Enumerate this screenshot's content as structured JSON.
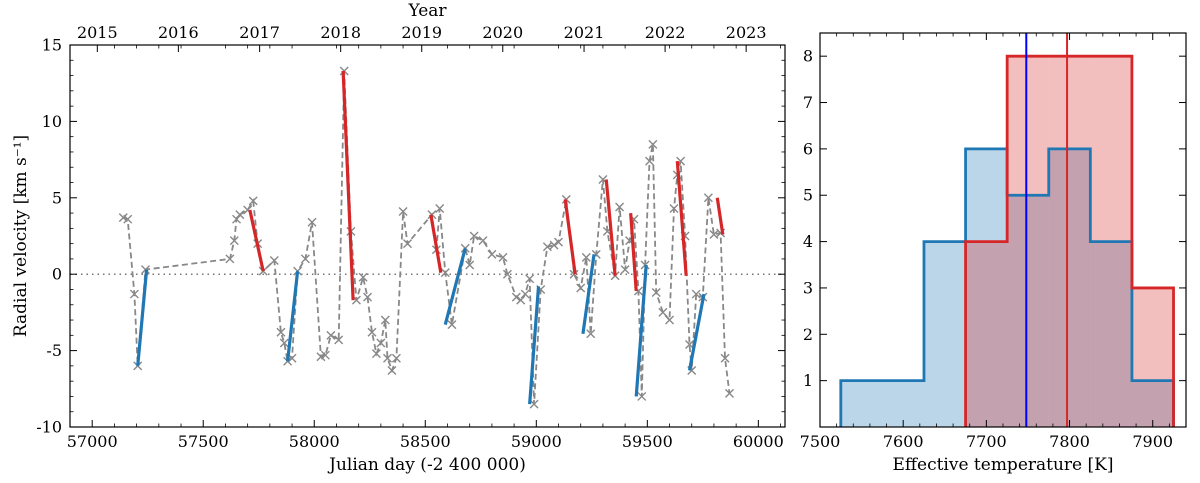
{
  "chart_data": [
    {
      "type": "line",
      "xlabel": "Julian day (-2 400 000)",
      "ylabel": "Radial velocity [km s⁻¹]",
      "top_xlabel": "Year",
      "xlim": [
        56900,
        60120
      ],
      "ylim": [
        -10,
        15
      ],
      "xticks": [
        57000,
        57500,
        58000,
        58500,
        59000,
        59500,
        60000
      ],
      "yticks": [
        -10,
        -5,
        0,
        5,
        10,
        15
      ],
      "top_ticks": [
        {
          "label": "2015",
          "x": 57023
        },
        {
          "label": "2016",
          "x": 57388
        },
        {
          "label": "2017",
          "x": 57754
        },
        {
          "label": "2018",
          "x": 58119
        },
        {
          "label": "2019",
          "x": 58484
        },
        {
          "label": "2020",
          "x": 58849
        },
        {
          "label": "2021",
          "x": 59215
        },
        {
          "label": "2022",
          "x": 59580
        },
        {
          "label": "2023",
          "x": 59945
        }
      ],
      "zero_line": 0,
      "colors": {
        "observed": "#888888",
        "rising": "#1f77b4",
        "falling": "#d62728"
      },
      "series": [
        {
          "kind": "observed",
          "x": [
            57140,
            57160,
            57190,
            57205,
            57240,
            57620,
            57640,
            57650,
            57665,
            57700,
            57725,
            57745,
            57770,
            57820,
            57850,
            57865,
            57880,
            57900,
            57925,
            57960,
            57990,
            58030,
            58050,
            58075,
            58110,
            58135,
            58165,
            58190,
            58220,
            58240,
            58260,
            58280,
            58300,
            58320,
            58330,
            58350,
            58370,
            58400,
            58420,
            58530,
            58550,
            58565,
            58590,
            58620,
            58680,
            58700,
            58720,
            58760,
            58800,
            58850,
            58870,
            58910,
            58930,
            58950,
            58970,
            58990,
            59020,
            59050,
            59080,
            59100,
            59135,
            59170,
            59200,
            59225,
            59245,
            59270,
            59300,
            59320,
            59355,
            59375,
            59400,
            59420,
            59440,
            59460,
            59475,
            59490,
            59510,
            59525,
            59540,
            59570,
            59600,
            59620,
            59635,
            59650,
            59670,
            59690,
            59700,
            59720,
            59750,
            59775,
            59800,
            59830,
            59850,
            59870
          ],
          "y": [
            3.7,
            3.6,
            -1.3,
            -6.0,
            0.3,
            1.0,
            2.2,
            3.6,
            3.9,
            4.2,
            4.8,
            2.0,
            0.2,
            0.9,
            -3.8,
            -4.5,
            -5.7,
            -5.5,
            0.2,
            1.0,
            3.4,
            -5.4,
            -5.3,
            -4.0,
            -4.3,
            13.3,
            2.8,
            -1.7,
            -0.2,
            -1.5,
            -3.8,
            -5.2,
            -4.5,
            -3.0,
            -5.5,
            -6.3,
            -5.5,
            4.1,
            2.0,
            3.9,
            1.6,
            4.3,
            0.1,
            -3.3,
            1.7,
            0.6,
            2.5,
            2.2,
            1.3,
            1.1,
            0.0,
            -1.5,
            -1.7,
            -1.3,
            -0.3,
            -8.5,
            -1.0,
            1.8,
            1.9,
            2.1,
            4.9,
            0.0,
            -0.9,
            1.1,
            -3.9,
            1.3,
            6.2,
            2.8,
            -0.1,
            4.4,
            0.3,
            2.2,
            3.6,
            -1.1,
            -8.0,
            0.6,
            7.4,
            8.5,
            -1.2,
            -2.5,
            -3.0,
            4.3,
            6.5,
            7.4,
            2.5,
            -4.6,
            -6.3,
            -1.3,
            -1.5,
            5.0,
            2.6,
            2.7,
            -5.5,
            -7.8
          ]
        },
        {
          "kind": "rising",
          "x": [
            57205,
            57245
          ],
          "y": [
            -6.0,
            0.3
          ]
        },
        {
          "kind": "rising",
          "x": [
            57880,
            57925
          ],
          "y": [
            -5.7,
            0.2
          ]
        },
        {
          "kind": "rising",
          "x": [
            58590,
            58680
          ],
          "y": [
            -3.3,
            1.7
          ]
        },
        {
          "kind": "rising",
          "x": [
            58970,
            59010
          ],
          "y": [
            -8.5,
            -0.8
          ]
        },
        {
          "kind": "rising",
          "x": [
            59210,
            59260
          ],
          "y": [
            -3.9,
            1.3
          ]
        },
        {
          "kind": "rising",
          "x": [
            59450,
            59495
          ],
          "y": [
            -8.0,
            0.6
          ]
        },
        {
          "kind": "rising",
          "x": [
            59690,
            59755
          ],
          "y": [
            -6.3,
            -1.3
          ]
        },
        {
          "kind": "falling",
          "x": [
            57710,
            57770
          ],
          "y": [
            4.2,
            0.2
          ]
        },
        {
          "kind": "falling",
          "x": [
            58130,
            58175
          ],
          "y": [
            13.3,
            -1.7
          ]
        },
        {
          "kind": "falling",
          "x": [
            58525,
            58570
          ],
          "y": [
            3.9,
            0.1
          ]
        },
        {
          "kind": "falling",
          "x": [
            59130,
            59175
          ],
          "y": [
            4.9,
            0.0
          ]
        },
        {
          "kind": "falling",
          "x": [
            59315,
            59355
          ],
          "y": [
            6.2,
            -0.1
          ]
        },
        {
          "kind": "falling",
          "x": [
            59425,
            59450
          ],
          "y": [
            4.0,
            -1.1
          ]
        },
        {
          "kind": "falling",
          "x": [
            59635,
            59675
          ],
          "y": [
            7.4,
            -0.1
          ]
        },
        {
          "kind": "falling",
          "x": [
            59815,
            59840
          ],
          "y": [
            5.0,
            2.6
          ]
        }
      ]
    },
    {
      "type": "histogram",
      "xlabel": "Effective temperature [K]",
      "ylabel": "",
      "xlim": [
        7500,
        7940
      ],
      "ylim": [
        0,
        8.5
      ],
      "xticks": [
        7500,
        7600,
        7700,
        7800,
        7900
      ],
      "yticks": [
        1,
        2,
        3,
        4,
        5,
        6,
        7,
        8
      ],
      "series": [
        {
          "color": "#1f77b4",
          "edges": [
            7525,
            7625,
            7675,
            7725,
            7775,
            7825,
            7875,
            7925
          ],
          "counts": [
            1,
            4,
            6,
            5,
            6,
            4,
            1
          ],
          "mean": 7748,
          "mean_color": "#0000ff"
        },
        {
          "color": "#d62728",
          "edges": [
            7675,
            7725,
            7775,
            7825,
            7875,
            7925
          ],
          "counts": [
            4,
            8,
            8,
            8,
            3
          ],
          "mean": 7797,
          "mean_color": "#d62728"
        }
      ]
    }
  ]
}
